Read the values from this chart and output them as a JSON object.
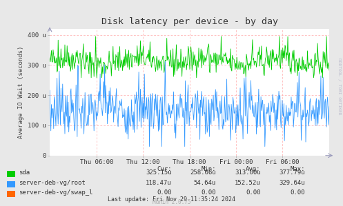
{
  "title": "Disk latency per device - by day",
  "ylabel": "Average IO Wait (seconds)",
  "right_label": "RRDTOOL / TOBI OETIKER",
  "bg_color": "#e8e8e8",
  "plot_bg_color": "#ffffff",
  "grid_color": "#ffaaaa",
  "ytick_labels": [
    "0",
    "100 u",
    "200 u",
    "300 u",
    "400 u"
  ],
  "ytick_values": [
    0,
    100,
    200,
    300,
    400
  ],
  "ylim": [
    0,
    420
  ],
  "xtick_labels": [
    "Thu 06:00",
    "Thu 12:00",
    "Thu 18:00",
    "Fri 00:00",
    "Fri 06:00"
  ],
  "n_points": 500,
  "sda_color": "#00cc00",
  "root_color": "#3399ff",
  "swap_color": "#ff6600",
  "legend_labels": [
    "sda",
    "server-deb-vg/root",
    "server-deb-vg/swap_l"
  ],
  "stats_headers": [
    "Cur:",
    "Min:",
    "Avg:",
    "Max:"
  ],
  "stats": [
    [
      "325.15u",
      "258.66u",
      "313.00u",
      "377.79u"
    ],
    [
      "118.47u",
      "54.64u",
      "152.52u",
      "329.64u"
    ],
    [
      "0.00",
      "0.00",
      "0.00",
      "0.00"
    ]
  ],
  "footer": "Last update: Fri Nov 29 11:35:24 2024",
  "munin_label": "Munin 2.0.75"
}
